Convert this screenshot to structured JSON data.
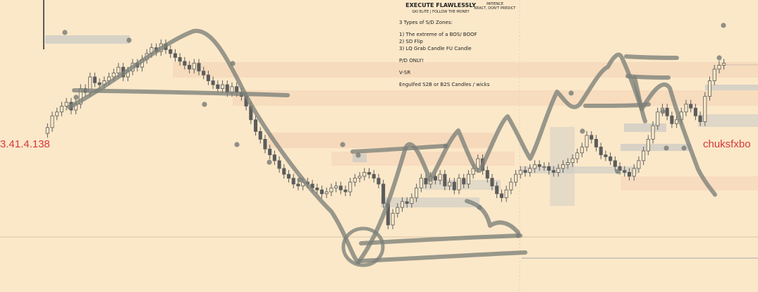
{
  "notes": {
    "title": "EXECUTE FLAWLESSLY",
    "subtitle": "GKI ELITE  |  FOLLOW THE MONEY",
    "side_top": "PATIENCE",
    "side_bottom": "REACT, DON'T PREDICT",
    "lines": [
      "3 Types of S/D Zones:",
      "",
      "1) The extreme of a BOS/ BOOF",
      "2) SD Flip",
      "3) LQ Grab Candle FU Candle",
      "",
      "P/D ONLY!",
      "",
      "V-SR",
      "",
      "Engulfed S2B or B2S Candles / wicks"
    ]
  },
  "watermark_left": "3.41.4.138",
  "watermark_right": "chuksfxbo",
  "colors": {
    "background": "#fbe8c9",
    "candle": "#5c5c5c",
    "zone_grey": "#c9c9c4",
    "zone_orange": "#f3cfb3",
    "drawing": "#7c8079",
    "watermark": "#d6383a",
    "price_line": "#a9a9a9"
  },
  "chart_data": {
    "type": "candlestick",
    "x_axis": "time (unlabeled)",
    "y_axis": "price (unlabeled)",
    "close_series": [
      44,
      50,
      52,
      55,
      57,
      53,
      56,
      64,
      62,
      70,
      67,
      66,
      68,
      70,
      72,
      75,
      70,
      73,
      77,
      75,
      79,
      82,
      85,
      83,
      87,
      84,
      82,
      80,
      78,
      76,
      74,
      77,
      73,
      71,
      68,
      66,
      64,
      66,
      62,
      65,
      62,
      60,
      55,
      48,
      42,
      38,
      33,
      30,
      27,
      23,
      20,
      18,
      15,
      14,
      16,
      15,
      13,
      12,
      10,
      11,
      13,
      14,
      12,
      11,
      16,
      18,
      19,
      21,
      20,
      18,
      15,
      5,
      -6,
      0,
      3,
      6,
      5,
      8,
      13,
      18,
      15,
      19,
      17,
      20,
      14,
      16,
      12,
      18,
      15,
      20,
      23,
      28,
      22,
      18,
      14,
      10,
      8,
      12,
      16,
      20,
      22,
      21,
      23,
      25,
      24,
      24,
      22,
      21,
      23,
      25,
      26,
      28,
      31,
      34,
      40,
      38,
      34,
      30,
      29,
      27,
      24,
      22,
      21,
      19,
      23,
      27,
      32,
      38,
      45,
      52,
      54,
      50,
      46,
      48,
      52,
      56,
      54,
      50,
      47,
      60,
      68,
      74,
      76,
      77
    ]
  }
}
